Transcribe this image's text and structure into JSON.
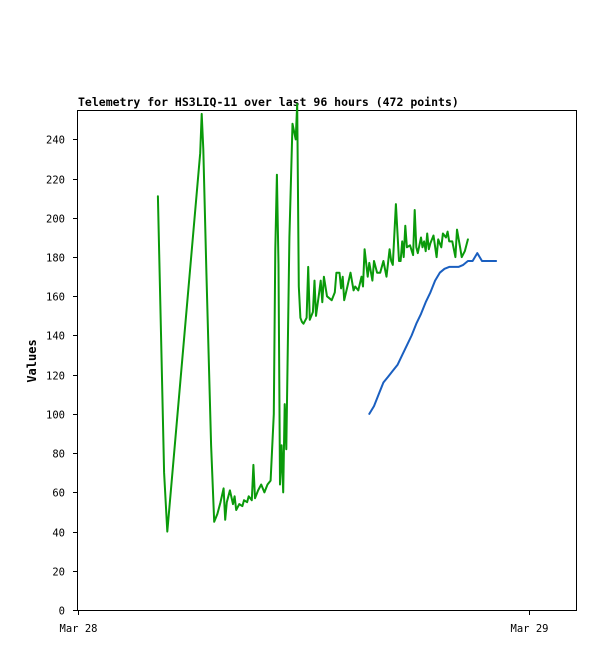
{
  "chart_data": {
    "type": "line",
    "title": "Telemetry for HS3LIQ-11 over last 96 hours (472 points)",
    "xlabel": "",
    "ylabel": "Values",
    "ylim": [
      0,
      255
    ],
    "yticks": [
      0,
      20,
      40,
      60,
      80,
      100,
      120,
      140,
      160,
      180,
      200,
      220,
      240
    ],
    "xlim": [
      "2024-03-28 00:00",
      "2024-03-29 02:30"
    ],
    "xticks": [
      {
        "x": "2024-03-28 00:00",
        "label": "Mar 28"
      },
      {
        "x": "2024-03-29 00:00",
        "label": "Mar 29"
      }
    ],
    "grid": false,
    "legend": "none",
    "series": [
      {
        "color": "#0a9a0a",
        "points": [
          [
            "2024-03-28 04:15",
            211
          ],
          [
            "2024-03-28 04:25",
            141
          ],
          [
            "2024-03-28 04:35",
            70
          ],
          [
            "2024-03-28 04:45",
            40
          ],
          [
            "2024-03-28 06:30",
            233
          ],
          [
            "2024-03-28 06:35",
            253
          ],
          [
            "2024-03-28 06:40",
            235
          ],
          [
            "2024-03-28 06:50",
            172
          ],
          [
            "2024-03-28 07:05",
            84
          ],
          [
            "2024-03-28 07:15",
            45
          ],
          [
            "2024-03-28 07:25",
            49
          ],
          [
            "2024-03-28 07:35",
            55
          ],
          [
            "2024-03-28 07:45",
            62
          ],
          [
            "2024-03-28 07:50",
            46
          ],
          [
            "2024-03-28 07:55",
            55
          ],
          [
            "2024-03-28 08:05",
            61
          ],
          [
            "2024-03-28 08:15",
            54
          ],
          [
            "2024-03-28 08:20",
            58
          ],
          [
            "2024-03-28 08:25",
            51
          ],
          [
            "2024-03-28 08:35",
            54
          ],
          [
            "2024-03-28 08:45",
            53
          ],
          [
            "2024-03-28 08:50",
            56
          ],
          [
            "2024-03-28 09:00",
            55
          ],
          [
            "2024-03-28 09:05",
            58
          ],
          [
            "2024-03-28 09:15",
            56
          ],
          [
            "2024-03-28 09:20",
            74
          ],
          [
            "2024-03-28 09:25",
            57
          ],
          [
            "2024-03-28 09:35",
            61
          ],
          [
            "2024-03-28 09:45",
            64
          ],
          [
            "2024-03-28 09:55",
            60
          ],
          [
            "2024-03-28 10:05",
            64
          ],
          [
            "2024-03-28 10:15",
            66
          ],
          [
            "2024-03-28 10:25",
            100
          ],
          [
            "2024-03-28 10:30",
            184
          ],
          [
            "2024-03-28 10:35",
            222
          ],
          [
            "2024-03-28 10:40",
            176
          ],
          [
            "2024-03-28 10:45",
            64
          ],
          [
            "2024-03-28 10:50",
            84
          ],
          [
            "2024-03-28 10:55",
            60
          ],
          [
            "2024-03-28 11:00",
            105
          ],
          [
            "2024-03-28 11:05",
            82
          ],
          [
            "2024-03-28 11:15",
            190
          ],
          [
            "2024-03-28 11:25",
            248
          ],
          [
            "2024-03-28 11:35",
            240
          ],
          [
            "2024-03-28 11:40",
            258
          ],
          [
            "2024-03-28 11:45",
            165
          ],
          [
            "2024-03-28 11:50",
            149
          ],
          [
            "2024-03-28 11:55",
            147
          ],
          [
            "2024-03-28 12:00",
            146
          ],
          [
            "2024-03-28 12:10",
            149
          ],
          [
            "2024-03-28 12:15",
            175
          ],
          [
            "2024-03-28 12:20",
            148
          ],
          [
            "2024-03-28 12:30",
            152
          ],
          [
            "2024-03-28 12:35",
            168
          ],
          [
            "2024-03-28 12:40",
            150
          ],
          [
            "2024-03-28 12:50",
            162
          ],
          [
            "2024-03-28 12:55",
            168
          ],
          [
            "2024-03-28 13:00",
            157
          ],
          [
            "2024-03-28 13:05",
            170
          ],
          [
            "2024-03-28 13:15",
            160
          ],
          [
            "2024-03-28 13:30",
            158
          ],
          [
            "2024-03-28 13:40",
            162
          ],
          [
            "2024-03-28 13:45",
            172
          ],
          [
            "2024-03-28 13:55",
            172
          ],
          [
            "2024-03-28 14:00",
            164
          ],
          [
            "2024-03-28 14:05",
            170
          ],
          [
            "2024-03-28 14:10",
            158
          ],
          [
            "2024-03-28 14:20",
            165
          ],
          [
            "2024-03-28 14:30",
            172
          ],
          [
            "2024-03-28 14:40",
            163
          ],
          [
            "2024-03-28 14:45",
            165
          ],
          [
            "2024-03-28 14:55",
            163
          ],
          [
            "2024-03-28 15:05",
            170
          ],
          [
            "2024-03-28 15:10",
            165
          ],
          [
            "2024-03-28 15:15",
            184
          ],
          [
            "2024-03-28 15:25",
            170
          ],
          [
            "2024-03-28 15:30",
            177
          ],
          [
            "2024-03-28 15:40",
            168
          ],
          [
            "2024-03-28 15:45",
            178
          ],
          [
            "2024-03-28 15:55",
            172
          ],
          [
            "2024-03-28 16:05",
            172
          ],
          [
            "2024-03-28 16:15",
            178
          ],
          [
            "2024-03-28 16:25",
            170
          ],
          [
            "2024-03-28 16:35",
            184
          ],
          [
            "2024-03-28 16:40",
            178
          ],
          [
            "2024-03-28 16:45",
            176
          ],
          [
            "2024-03-28 16:55",
            207
          ],
          [
            "2024-03-28 17:05",
            178
          ],
          [
            "2024-03-28 17:10",
            178
          ],
          [
            "2024-03-28 17:15",
            188
          ],
          [
            "2024-03-28 17:20",
            180
          ],
          [
            "2024-03-28 17:25",
            196
          ],
          [
            "2024-03-28 17:30",
            185
          ],
          [
            "2024-03-28 17:40",
            186
          ],
          [
            "2024-03-28 17:50",
            181
          ],
          [
            "2024-03-28 17:55",
            204
          ],
          [
            "2024-03-28 18:00",
            185
          ],
          [
            "2024-03-28 18:05",
            182
          ],
          [
            "2024-03-28 18:15",
            190
          ],
          [
            "2024-03-28 18:20",
            185
          ],
          [
            "2024-03-28 18:25",
            188
          ],
          [
            "2024-03-28 18:30",
            183
          ],
          [
            "2024-03-28 18:35",
            192
          ],
          [
            "2024-03-28 18:40",
            184
          ],
          [
            "2024-03-28 18:45",
            187
          ],
          [
            "2024-03-28 18:55",
            191
          ],
          [
            "2024-03-28 19:05",
            180
          ],
          [
            "2024-03-28 19:10",
            189
          ],
          [
            "2024-03-28 19:20",
            185
          ],
          [
            "2024-03-28 19:25",
            192
          ],
          [
            "2024-03-28 19:35",
            190
          ],
          [
            "2024-03-28 19:40",
            193
          ],
          [
            "2024-03-28 19:45",
            188
          ],
          [
            "2024-03-28 19:55",
            188
          ],
          [
            "2024-03-28 20:05",
            180
          ],
          [
            "2024-03-28 20:10",
            194
          ],
          [
            "2024-03-28 20:20",
            185
          ],
          [
            "2024-03-28 20:25",
            180
          ],
          [
            "2024-03-28 20:35",
            183
          ],
          [
            "2024-03-28 20:45",
            189
          ]
        ]
      },
      {
        "color": "#1a5fc0",
        "points": [
          [
            "2024-03-28 15:30",
            100
          ],
          [
            "2024-03-28 15:45",
            104
          ],
          [
            "2024-03-28 16:00",
            110
          ],
          [
            "2024-03-28 16:15",
            116
          ],
          [
            "2024-03-28 16:30",
            119
          ],
          [
            "2024-03-28 16:45",
            122
          ],
          [
            "2024-03-28 17:00",
            125
          ],
          [
            "2024-03-28 17:15",
            130
          ],
          [
            "2024-03-28 17:30",
            135
          ],
          [
            "2024-03-28 17:45",
            140
          ],
          [
            "2024-03-28 18:00",
            146
          ],
          [
            "2024-03-28 18:15",
            151
          ],
          [
            "2024-03-28 18:30",
            157
          ],
          [
            "2024-03-28 18:45",
            162
          ],
          [
            "2024-03-28 19:00",
            168
          ],
          [
            "2024-03-28 19:15",
            172
          ],
          [
            "2024-03-28 19:30",
            174
          ],
          [
            "2024-03-28 19:45",
            175
          ],
          [
            "2024-03-28 20:00",
            175
          ],
          [
            "2024-03-28 20:15",
            175
          ],
          [
            "2024-03-28 20:30",
            176
          ],
          [
            "2024-03-28 20:45",
            178
          ],
          [
            "2024-03-28 21:00",
            178
          ],
          [
            "2024-03-28 21:15",
            182
          ],
          [
            "2024-03-28 21:30",
            178
          ],
          [
            "2024-03-28 21:45",
            178
          ],
          [
            "2024-03-28 22:00",
            178
          ],
          [
            "2024-03-28 22:15",
            178
          ]
        ]
      }
    ]
  }
}
